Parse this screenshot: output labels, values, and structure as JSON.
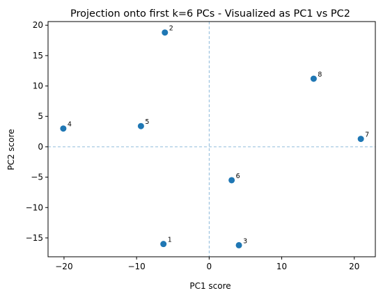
{
  "chart_data": {
    "type": "scatter",
    "title": "Projection onto first k=6 PCs - Visualized as PC1 vs PC2",
    "xlabel": "PC1 score",
    "ylabel": "PC2 score",
    "xlim": [
      -22.2,
      22.9
    ],
    "ylim": [
      -18.1,
      20.6
    ],
    "xticks": [
      -20,
      -10,
      0,
      10,
      20
    ],
    "yticks": [
      -15,
      -10,
      -5,
      0,
      5,
      10,
      15,
      20
    ],
    "xtick_labels": [
      "−20",
      "−10",
      "0",
      "10",
      "20"
    ],
    "ytick_labels": [
      "−15",
      "−10",
      "−5",
      "0",
      "5",
      "10",
      "15",
      "20"
    ],
    "grid": false,
    "reference_lines": {
      "x": 0,
      "y": 0,
      "style": "dashed",
      "color": "#7fb1d6"
    },
    "marker_color": "#1f77b4",
    "points": [
      {
        "label": "1",
        "x": -6.3,
        "y": -16.0
      },
      {
        "label": "2",
        "x": -6.1,
        "y": 18.8
      },
      {
        "label": "3",
        "x": 4.1,
        "y": -16.2
      },
      {
        "label": "4",
        "x": -20.1,
        "y": 3.0
      },
      {
        "label": "5",
        "x": -9.4,
        "y": 3.4
      },
      {
        "label": "6",
        "x": 3.1,
        "y": -5.5
      },
      {
        "label": "7",
        "x": 20.9,
        "y": 1.3
      },
      {
        "label": "8",
        "x": 14.4,
        "y": 11.2
      }
    ]
  }
}
